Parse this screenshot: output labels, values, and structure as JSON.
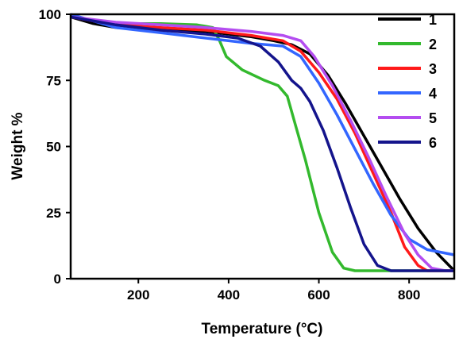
{
  "chart_data": {
    "type": "line",
    "xlabel": "Temperature (°C)",
    "ylabel": "Weight %",
    "xlim": [
      50,
      900
    ],
    "ylim": [
      0,
      100
    ],
    "xticks": [
      200,
      400,
      600,
      800
    ],
    "yticks": [
      0,
      25,
      50,
      75,
      100
    ],
    "grid": false,
    "legend_position": "top-right",
    "series": [
      {
        "name": "1",
        "color": "#000000",
        "points": [
          [
            50,
            99
          ],
          [
            100,
            96.5
          ],
          [
            150,
            95
          ],
          [
            250,
            94.5
          ],
          [
            350,
            93.5
          ],
          [
            450,
            91.5
          ],
          [
            500,
            90
          ],
          [
            540,
            88.5
          ],
          [
            580,
            85
          ],
          [
            620,
            77
          ],
          [
            660,
            66
          ],
          [
            700,
            54
          ],
          [
            740,
            42
          ],
          [
            780,
            30
          ],
          [
            820,
            19
          ],
          [
            860,
            10
          ],
          [
            900,
            3
          ]
        ]
      },
      {
        "name": "2",
        "color": "#33b92d",
        "points": [
          [
            50,
            99
          ],
          [
            150,
            96.5
          ],
          [
            250,
            96.5
          ],
          [
            330,
            96
          ],
          [
            365,
            95
          ],
          [
            380,
            90
          ],
          [
            395,
            84
          ],
          [
            430,
            79
          ],
          [
            480,
            75
          ],
          [
            510,
            73
          ],
          [
            530,
            69
          ],
          [
            550,
            57
          ],
          [
            570,
            45
          ],
          [
            600,
            25
          ],
          [
            630,
            10
          ],
          [
            655,
            4
          ],
          [
            680,
            3
          ],
          [
            900,
            3
          ]
        ]
      },
      {
        "name": "3",
        "color": "#ff1a1a",
        "points": [
          [
            50,
            99
          ],
          [
            150,
            96
          ],
          [
            250,
            95
          ],
          [
            350,
            94
          ],
          [
            450,
            92
          ],
          [
            520,
            90
          ],
          [
            560,
            86
          ],
          [
            600,
            78
          ],
          [
            640,
            68
          ],
          [
            680,
            55
          ],
          [
            720,
            40
          ],
          [
            760,
            25
          ],
          [
            790,
            12
          ],
          [
            820,
            5
          ],
          [
            840,
            3
          ],
          [
            900,
            3
          ]
        ]
      },
      {
        "name": "4",
        "color": "#3366ff",
        "points": [
          [
            50,
            100
          ],
          [
            150,
            95
          ],
          [
            250,
            93
          ],
          [
            350,
            91
          ],
          [
            450,
            89
          ],
          [
            520,
            88
          ],
          [
            560,
            84
          ],
          [
            600,
            74
          ],
          [
            640,
            62
          ],
          [
            680,
            49
          ],
          [
            720,
            36
          ],
          [
            760,
            24
          ],
          [
            800,
            15
          ],
          [
            840,
            11
          ],
          [
            900,
            9
          ]
        ]
      },
      {
        "name": "5",
        "color": "#b44df0",
        "points": [
          [
            50,
            99
          ],
          [
            150,
            97
          ],
          [
            250,
            96
          ],
          [
            350,
            95
          ],
          [
            450,
            93.5
          ],
          [
            520,
            92
          ],
          [
            560,
            90
          ],
          [
            590,
            84
          ],
          [
            630,
            73
          ],
          [
            670,
            60
          ],
          [
            710,
            46
          ],
          [
            750,
            31
          ],
          [
            790,
            17
          ],
          [
            820,
            9
          ],
          [
            850,
            4
          ],
          [
            880,
            3
          ],
          [
            900,
            3
          ]
        ]
      },
      {
        "name": "6",
        "color": "#14148c",
        "points": [
          [
            50,
            99
          ],
          [
            150,
            96
          ],
          [
            250,
            94
          ],
          [
            350,
            92.5
          ],
          [
            420,
            91
          ],
          [
            470,
            88
          ],
          [
            510,
            82
          ],
          [
            540,
            75
          ],
          [
            560,
            72
          ],
          [
            580,
            67
          ],
          [
            610,
            56
          ],
          [
            640,
            42
          ],
          [
            670,
            27
          ],
          [
            700,
            13
          ],
          [
            730,
            5
          ],
          [
            760,
            3
          ],
          [
            900,
            3
          ]
        ]
      }
    ]
  }
}
